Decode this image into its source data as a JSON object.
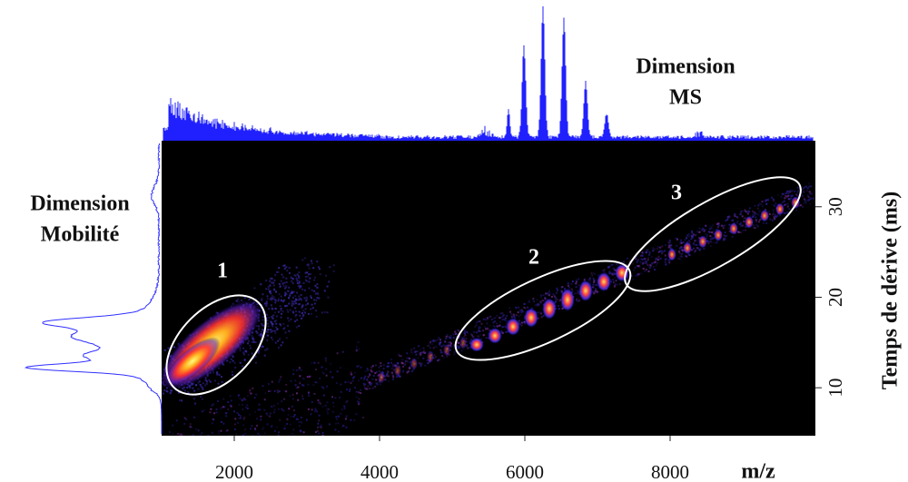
{
  "chart_data": {
    "type": "heatmap",
    "x_label": "m/z",
    "y_label": "Temps de dérive (ms)",
    "xlim": [
      1000,
      10000
    ],
    "xticks": [
      2000,
      4000,
      6000,
      8000
    ],
    "ylim": [
      4.7,
      37.3
    ],
    "yticks": [
      10,
      20,
      30
    ],
    "top_panel_label": [
      "Dimension",
      "MS"
    ],
    "left_panel_label": [
      "Dimension",
      "Mobilité"
    ],
    "region_labels": [
      "1",
      "2",
      "3"
    ]
  }
}
